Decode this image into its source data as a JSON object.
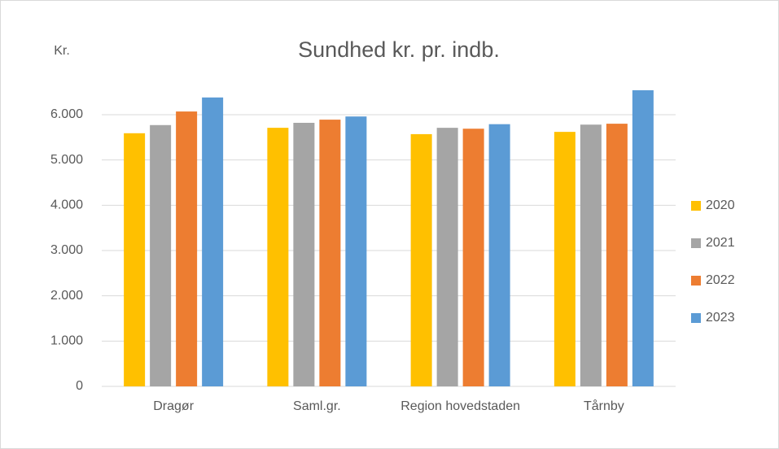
{
  "chart_data": {
    "type": "bar",
    "title": "Sundhed kr. pr. indb.",
    "y_label": "Kr.",
    "categories": [
      "Dragør",
      "Saml.gr.",
      "Region hovedstaden",
      "Tårnby"
    ],
    "series": [
      {
        "name": "2020",
        "color": "#ffc000",
        "values": [
          5590,
          5710,
          5570,
          5620
        ]
      },
      {
        "name": "2021",
        "color": "#a5a5a5",
        "values": [
          5770,
          5820,
          5710,
          5780
        ]
      },
      {
        "name": "2022",
        "color": "#ed7d31",
        "values": [
          6070,
          5890,
          5690,
          5800
        ]
      },
      {
        "name": "2023",
        "color": "#5b9bd5",
        "values": [
          6380,
          5960,
          5790,
          6540
        ]
      }
    ],
    "ylim": [
      0,
      7000
    ],
    "yticks": [
      0,
      {
        "value": 1000,
        "label": "1.000"
      },
      {
        "value": 2000,
        "label": "2.000"
      },
      {
        "value": 3000,
        "label": "3.000"
      },
      {
        "value": 4000,
        "label": "4.000"
      },
      {
        "value": 5000,
        "label": "5.000"
      },
      {
        "value": 6000,
        "label": "6.000"
      }
    ],
    "grid": true,
    "legend": "right"
  }
}
